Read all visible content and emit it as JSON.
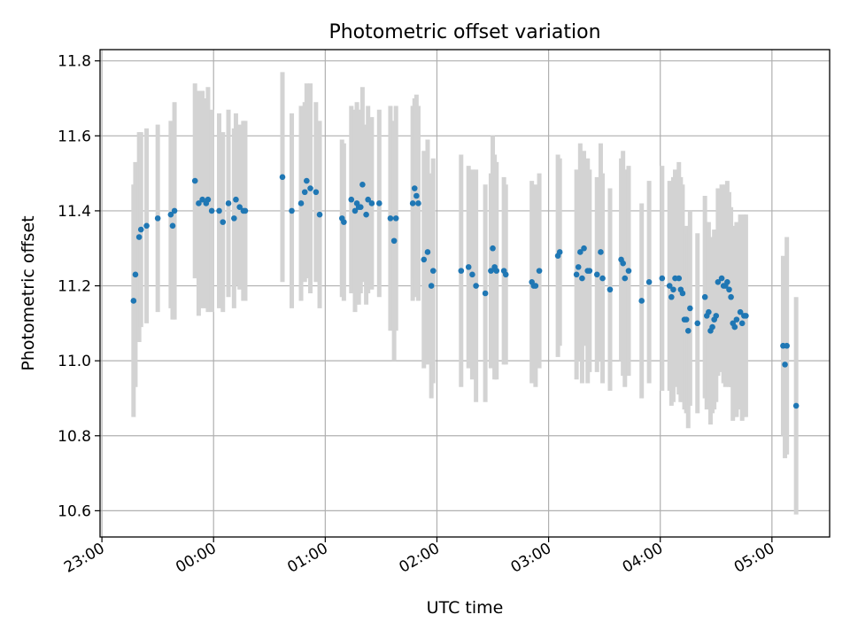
{
  "chart_data": {
    "type": "scatter",
    "title": "Photometric offset variation",
    "xlabel": "UTC time",
    "ylabel": "Photometric offset",
    "xlim": [
      "22:59",
      "05:31"
    ],
    "ylim": [
      10.53,
      11.83
    ],
    "x_ticks": [
      "23:00",
      "00:00",
      "01:00",
      "02:00",
      "03:00",
      "04:00",
      "05:00"
    ],
    "y_ticks": [
      "10.6",
      "10.8",
      "11.0",
      "11.2",
      "11.4",
      "11.6",
      "11.8"
    ],
    "grid": true,
    "point_color": "#1f77b4",
    "errorbar_color": "#d3d3d3",
    "series": [
      {
        "x": [
          "23:17",
          "23:18",
          "23:20",
          "23:21",
          "23:24",
          "23:30",
          "23:37",
          "23:38",
          "23:39",
          "23:50",
          "23:52",
          "23:54",
          "23:56",
          "23:57",
          "23:59",
          "00:03",
          "00:05",
          "00:08",
          "00:11",
          "00:12",
          "00:14",
          "00:16",
          "00:17",
          "00:37",
          "00:42",
          "00:47",
          "00:49",
          "00:50",
          "00:52",
          "00:55",
          "00:57",
          "01:09",
          "01:10",
          "01:14",
          "01:16",
          "01:17",
          "01:18",
          "01:19",
          "01:20",
          "01:22",
          "01:23",
          "01:25",
          "01:29",
          "01:35",
          "01:37",
          "01:38",
          "01:47",
          "01:48",
          "01:49",
          "01:50",
          "01:53",
          "01:55",
          "01:57",
          "01:58",
          "02:13",
          "02:17",
          "02:19",
          "02:21",
          "02:26",
          "02:29",
          "02:30",
          "02:31",
          "02:32",
          "02:36",
          "02:37",
          "02:51",
          "02:52",
          "02:53",
          "02:55",
          "03:05",
          "03:06",
          "03:15",
          "03:16",
          "03:17",
          "03:18",
          "03:19",
          "03:21",
          "03:22",
          "03:26",
          "03:28",
          "03:29",
          "03:33",
          "03:39",
          "03:40",
          "03:41",
          "03:43",
          "03:50",
          "03:54",
          "04:01",
          "04:05",
          "04:06",
          "04:07",
          "04:08",
          "04:10",
          "04:11",
          "04:12",
          "04:13",
          "04:14",
          "04:15",
          "04:16",
          "04:20",
          "04:24",
          "04:25",
          "04:26",
          "04:27",
          "04:28",
          "04:29",
          "04:30",
          "04:31",
          "04:33",
          "04:34",
          "04:35",
          "04:36",
          "04:37",
          "04:38",
          "04:39",
          "04:40",
          "04:41",
          "04:43",
          "04:44",
          "04:45",
          "04:46",
          "05:06",
          "05:07",
          "05:08",
          "05:13"
        ],
        "y": [
          11.16,
          11.23,
          11.33,
          11.35,
          11.36,
          11.38,
          11.39,
          11.36,
          11.4,
          11.48,
          11.42,
          11.43,
          11.42,
          11.43,
          11.4,
          11.4,
          11.37,
          11.42,
          11.38,
          11.43,
          11.41,
          11.4,
          11.4,
          11.49,
          11.4,
          11.42,
          11.45,
          11.48,
          11.46,
          11.45,
          11.39,
          11.38,
          11.37,
          11.43,
          11.4,
          11.42,
          11.41,
          11.41,
          11.47,
          11.39,
          11.43,
          11.42,
          11.42,
          11.38,
          11.32,
          11.38,
          11.42,
          11.46,
          11.44,
          11.42,
          11.27,
          11.29,
          11.2,
          11.24,
          11.24,
          11.25,
          11.23,
          11.2,
          11.18,
          11.24,
          11.3,
          11.25,
          11.24,
          11.24,
          11.23,
          11.21,
          11.2,
          11.2,
          11.24,
          11.28,
          11.29,
          11.23,
          11.25,
          11.29,
          11.22,
          11.3,
          11.24,
          11.24,
          11.23,
          11.29,
          11.22,
          11.19,
          11.27,
          11.26,
          11.22,
          11.24,
          11.16,
          11.21,
          11.22,
          11.2,
          11.17,
          11.19,
          11.22,
          11.22,
          11.19,
          11.18,
          11.11,
          11.11,
          11.08,
          11.14,
          11.1,
          11.17,
          11.12,
          11.13,
          11.08,
          11.09,
          11.11,
          11.12,
          11.21,
          11.22,
          11.2,
          11.2,
          11.21,
          11.19,
          11.17,
          11.1,
          11.09,
          11.11,
          11.13,
          11.1,
          11.12,
          11.12,
          11.04,
          10.99,
          11.04,
          10.88
        ],
        "err": [
          0.31,
          0.3,
          0.28,
          0.26,
          0.26,
          0.25,
          0.25,
          0.25,
          0.29,
          0.26,
          0.3,
          0.29,
          0.28,
          0.3,
          0.27,
          0.26,
          0.24,
          0.25,
          0.24,
          0.23,
          0.22,
          0.24,
          0.24,
          0.28,
          0.26,
          0.26,
          0.24,
          0.26,
          0.28,
          0.24,
          0.25,
          0.21,
          0.21,
          0.25,
          0.27,
          0.27,
          0.26,
          0.23,
          0.26,
          0.24,
          0.25,
          0.23,
          0.25,
          0.3,
          0.32,
          0.3,
          0.26,
          0.24,
          0.27,
          0.26,
          0.29,
          0.3,
          0.3,
          0.3,
          0.31,
          0.27,
          0.28,
          0.31,
          0.29,
          0.26,
          0.3,
          0.3,
          0.29,
          0.25,
          0.24,
          0.27,
          0.26,
          0.27,
          0.26,
          0.27,
          0.25,
          0.28,
          0.25,
          0.29,
          0.28,
          0.26,
          0.3,
          0.27,
          0.26,
          0.29,
          0.28,
          0.27,
          0.27,
          0.3,
          0.29,
          0.28,
          0.26,
          0.27,
          0.3,
          0.28,
          0.29,
          0.3,
          0.29,
          0.31,
          0.3,
          0.29,
          0.24,
          0.25,
          0.26,
          0.26,
          0.24,
          0.27,
          0.25,
          0.24,
          0.25,
          0.23,
          0.24,
          0.23,
          0.25,
          0.25,
          0.26,
          0.27,
          0.27,
          0.26,
          0.24,
          0.26,
          0.24,
          0.26,
          0.26,
          0.26,
          0.27,
          0.27,
          0.24,
          0.25,
          0.29,
          0.29
        ]
      }
    ]
  }
}
